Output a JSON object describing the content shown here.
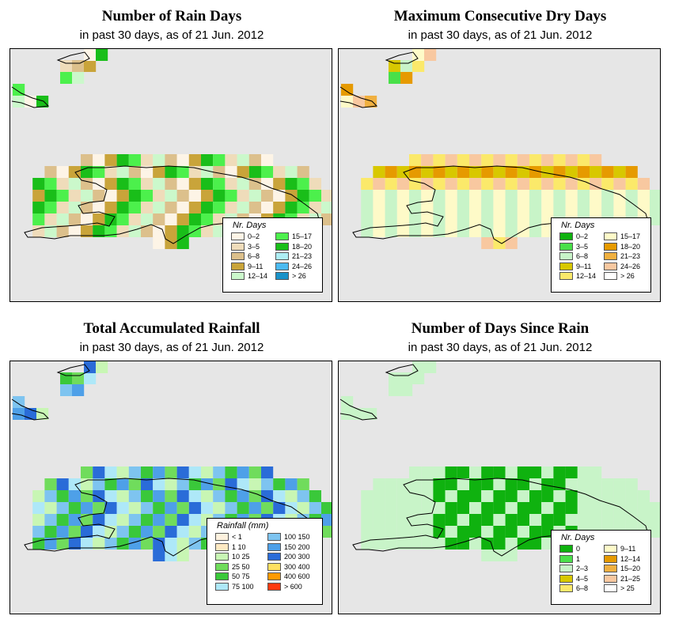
{
  "panels": [
    {
      "title": "Number of Rain Days",
      "subtitle": "in past 30 days, as of  21 Jun. 2012",
      "legend_title": "Nr. Days",
      "legend": [
        {
          "label": "0–2",
          "color": "#fdf4e6"
        },
        {
          "label": "3–5",
          "color": "#efdcba"
        },
        {
          "label": "6–8",
          "color": "#dcc08c"
        },
        {
          "label": "9–11",
          "color": "#c9a43a"
        },
        {
          "label": "12–14",
          "color": "#cbf8cb"
        },
        {
          "label": "15–17",
          "color": "#4cf04c"
        },
        {
          "label": "18–20",
          "color": "#19be19"
        },
        {
          "label": "21–23",
          "color": "#aeeef4"
        },
        {
          "label": "24–26",
          "color": "#4cbaf0"
        },
        {
          "label": "> 26",
          "color": "#1a92c8"
        }
      ]
    },
    {
      "title": "Maximum Consecutive Dry Days",
      "subtitle": "in past 30 days, as of  21 Jun. 2012",
      "legend_title": "Nr. Days",
      "legend": [
        {
          "label": "0–2",
          "color": "#0fb20f"
        },
        {
          "label": "3–5",
          "color": "#49e049"
        },
        {
          "label": "6–8",
          "color": "#c8f4c8"
        },
        {
          "label": "9–11",
          "color": "#d8c800"
        },
        {
          "label": "12–14",
          "color": "#fbe96a"
        },
        {
          "label": "15–17",
          "color": "#fefac8"
        },
        {
          "label": "18–20",
          "color": "#e69a00"
        },
        {
          "label": "21–23",
          "color": "#f0b040"
        },
        {
          "label": "24–26",
          "color": "#f8c8a0"
        },
        {
          "label": "> 26",
          "color": "#ffffff"
        }
      ]
    },
    {
      "title": "Total Accumulated Rainfall",
      "subtitle": "in past 30 days, as of  21 Jun. 2012",
      "legend_title": "Rainfall (mm)",
      "legend": [
        {
          "label": "< 1",
          "color": "#fdf1de"
        },
        {
          "label": "1    10",
          "color": "#fde9c2"
        },
        {
          "label": "10    25",
          "color": "#c8f6b4"
        },
        {
          "label": "25    50",
          "color": "#70dc5c"
        },
        {
          "label": "50    75",
          "color": "#3ac83a"
        },
        {
          "label": "75  100",
          "color": "#aee8f8"
        },
        {
          "label": "100  150",
          "color": "#7ec4f0"
        },
        {
          "label": "150  200",
          "color": "#4ea0e8"
        },
        {
          "label": "200  300",
          "color": "#2a6cd8"
        },
        {
          "label": "300  400",
          "color": "#ffe060"
        },
        {
          "label": "400  600",
          "color": "#ff9a00"
        },
        {
          "label": "> 600",
          "color": "#ff3a10"
        }
      ]
    },
    {
      "title": "Number of Days Since Rain",
      "subtitle": "in past 30 days, as of  21 Jun. 2012",
      "legend_title": "Nr. Days",
      "legend": [
        {
          "label": "0",
          "color": "#0fb20f"
        },
        {
          "label": "1",
          "color": "#4ce04c"
        },
        {
          "label": "2–3",
          "color": "#c8f4c8"
        },
        {
          "label": "4–5",
          "color": "#d8c800"
        },
        {
          "label": "6–8",
          "color": "#fbe96a"
        },
        {
          "label": "9–11",
          "color": "#fefac8"
        },
        {
          "label": "12–14",
          "color": "#e69a00"
        },
        {
          "label": "15–20",
          "color": "#f0b040"
        },
        {
          "label": "21–25",
          "color": "#f8c8a0"
        },
        {
          "label": "> 25",
          "color": "#ffffff"
        }
      ]
    }
  ]
}
